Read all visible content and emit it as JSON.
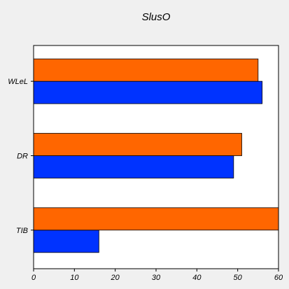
{
  "chart_data": {
    "type": "bar",
    "orientation": "horizontal",
    "title": "SlusO",
    "xlabel": "",
    "ylabel": "",
    "categories": [
      "TIB",
      "DR",
      "WLeL"
    ],
    "series": [
      {
        "values": [
          16,
          49,
          56
        ],
        "color": "#0033ff"
      },
      {
        "values": [
          60,
          51,
          55
        ],
        "color": "#ff6600"
      }
    ],
    "xlim": [
      0,
      60
    ],
    "xticks": [
      0,
      10,
      20,
      30,
      40,
      50,
      60
    ],
    "grid": false,
    "legend": "none",
    "colors": {
      "background": "#f0f0f0",
      "plot_background": "#ffffff",
      "axis": "#000000"
    }
  }
}
